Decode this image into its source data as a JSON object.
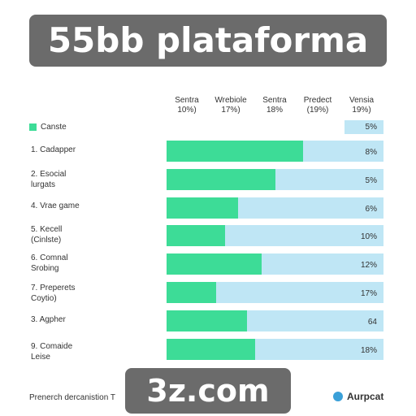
{
  "banner_top": "55bb plataforma",
  "banner_bottom": "3z.com",
  "columns": [
    {
      "name": "Sentra",
      "value": "10%)"
    },
    {
      "name": "Wrebiole",
      "value": "17%)"
    },
    {
      "name": "Sentra",
      "value": "18%"
    },
    {
      "name": "Predect",
      "value": "(19%)"
    },
    {
      "name": "Vensia",
      "value": "19%)"
    }
  ],
  "legend": {
    "label": "Canste",
    "color": "#3ddc97"
  },
  "header_pct": "5%",
  "rows": [
    {
      "line1": "1. Cadapper",
      "line2": "",
      "pct": "8%"
    },
    {
      "line1": "2. Esocial",
      "line2": "lurgats",
      "pct": "5%"
    },
    {
      "line1": "4. Vrae game",
      "line2": "",
      "pct": "6%"
    },
    {
      "line1": "5. Kecell",
      "line2": "(Cinlste)",
      "pct": "10%"
    },
    {
      "line1": "6. Comnal",
      "line2": "Srobing",
      "pct": "12%"
    },
    {
      "line1": "7. Preperets",
      "line2": "Coytio)",
      "pct": "17%"
    },
    {
      "line1": "3. Agpher",
      "line2": "",
      "pct": "64"
    },
    {
      "line1": "9. Comaide",
      "line2": "Leise",
      "pct": "18%"
    }
  ],
  "footer": {
    "note": "Prenerch dercanistion T",
    "brand": "Aurpcat"
  },
  "colors": {
    "bar": "#3ddc97",
    "track": "#bfe6f5"
  },
  "chart_data": {
    "type": "bar",
    "orientation": "horizontal",
    "categories": [
      "1. Cadapper",
      "2. Esocial lurgats",
      "4. Vrae game",
      "5. Kecell (Cinlste)",
      "6. Comnal Srobing",
      "7. Preperets Coytio)",
      "3. Agpher",
      "9. Comaide Leise"
    ],
    "series": [
      {
        "name": "Canste",
        "values": [
          0.63,
          0.5,
          0.33,
          0.27,
          0.44,
          0.23,
          0.37,
          0.41
        ]
      }
    ],
    "value_scale": "fraction of row track",
    "data_labels": [
      "8%",
      "5%",
      "6%",
      "10%",
      "12%",
      "17%",
      "64",
      "18%"
    ],
    "grid": false,
    "legend_position": "top-left"
  }
}
